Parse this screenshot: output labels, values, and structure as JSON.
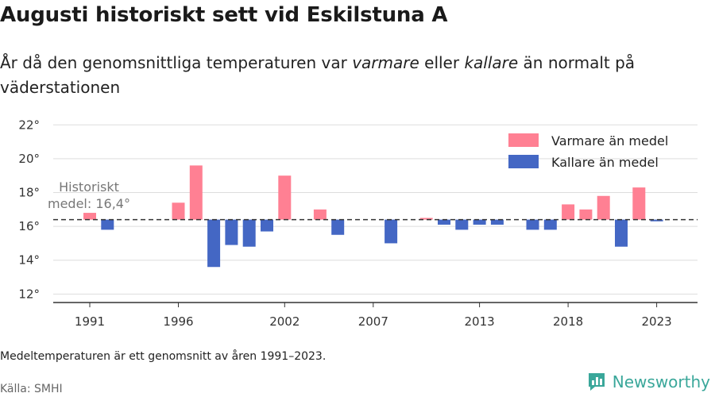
{
  "header": {
    "title": "Augusti historiskt sett vid Eskilstuna A",
    "subtitle_1": "År då den genomsnittliga temperaturen var ",
    "subtitle_warm": "varmare",
    "subtitle_2": " eller ",
    "subtitle_cold": "kallare",
    "subtitle_3": " än normalt på väderstationen"
  },
  "footer": {
    "note": "Medeltemperaturen är ett genomsnitt av åren 1991–2023.",
    "source": "Källa: SMHI",
    "brand": "Newsworthy"
  },
  "colors": {
    "warm": "#ff8093",
    "cold": "#4467c4",
    "baseline": "#333333",
    "grid": "#dddddd",
    "brand": "#3aa79a"
  },
  "chart_data": {
    "type": "bar",
    "baseline": 16.4,
    "baseline_annotation": [
      "Historiskt",
      "medel: 16,4°"
    ],
    "ylim": [
      11.5,
      22.2
    ],
    "yticks": [
      12,
      14,
      16,
      18,
      20,
      22
    ],
    "ytick_labels": [
      "12°",
      "14°",
      "16°",
      "18°",
      "20°",
      "22°"
    ],
    "xticks": [
      1991,
      1996,
      2002,
      2007,
      2013,
      2018,
      2023
    ],
    "xtick_labels": [
      "1991",
      "1996",
      "2002",
      "2007",
      "2013",
      "2018",
      "2023"
    ],
    "legend": {
      "position": "top-right",
      "warm_label": "Varmare än medel",
      "cold_label": "Kallare än medel"
    },
    "years": [
      1991,
      1992,
      1993,
      1994,
      1995,
      1996,
      1997,
      1998,
      1999,
      2000,
      2001,
      2002,
      2003,
      2004,
      2005,
      2006,
      2007,
      2008,
      2009,
      2010,
      2011,
      2012,
      2013,
      2014,
      2015,
      2016,
      2017,
      2018,
      2019,
      2020,
      2021,
      2022,
      2023
    ],
    "values": [
      16.8,
      15.8,
      null,
      null,
      null,
      17.4,
      19.6,
      13.6,
      14.9,
      14.8,
      15.7,
      19.0,
      null,
      17.0,
      15.5,
      null,
      null,
      15.0,
      null,
      16.5,
      16.1,
      15.8,
      16.1,
      16.1,
      null,
      15.8,
      15.8,
      17.3,
      17.0,
      17.8,
      14.8,
      18.3,
      16.3
    ]
  }
}
